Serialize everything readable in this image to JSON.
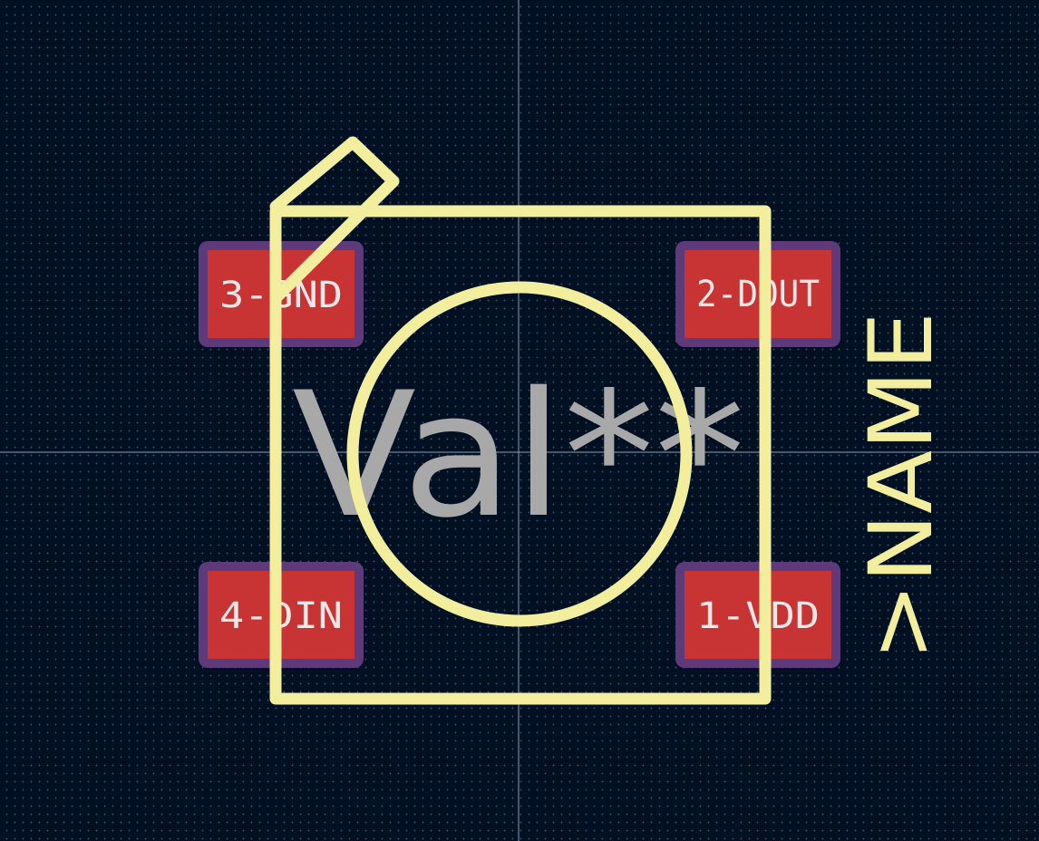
{
  "editor": {
    "colors": {
      "background": "#001023",
      "grid": "#3b4a60",
      "crosshair": "#8aa0b8",
      "silkscreen": "#f2ee9d",
      "pad": "#c83434",
      "pad_mask": "#5e3a7a",
      "pad_text": "#f2e6e6",
      "fab_text": "#a8a8a8"
    }
  },
  "footprint": {
    "value_text": "Val**",
    "reference_text": ">NAME",
    "pads": [
      {
        "id": "pad-3",
        "label": "3-GND"
      },
      {
        "id": "pad-2",
        "label": "2-DOUT"
      },
      {
        "id": "pad-4",
        "label": "4-DIN"
      },
      {
        "id": "pad-1",
        "label": "1-VDD"
      }
    ]
  }
}
